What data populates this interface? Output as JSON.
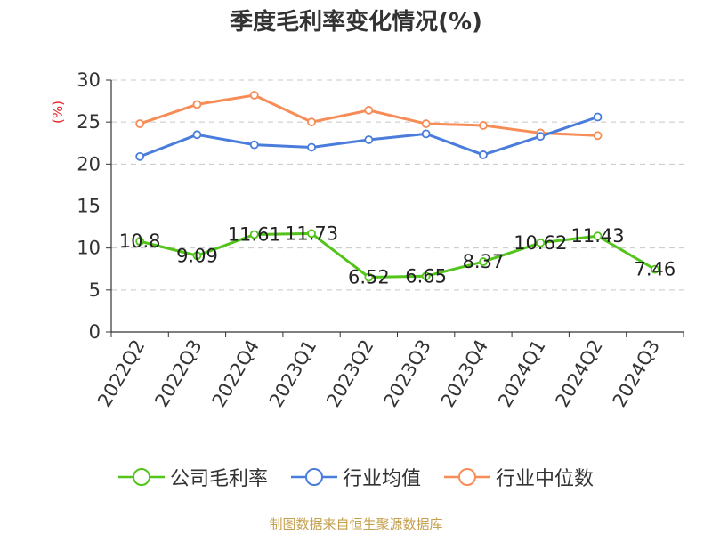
{
  "title": "季度毛利率变化情况(%)",
  "source_note": "制图数据来自恒生聚源数据库",
  "chart_data": {
    "type": "line",
    "title": "季度毛利率变化情况(%)",
    "ylabel": "(%)",
    "xlabel": "",
    "ylim": [
      0,
      30
    ],
    "yticks": [
      0,
      5,
      10,
      15,
      20,
      25,
      30
    ],
    "grid": true,
    "legend_position": "bottom",
    "categories": [
      "2022Q2",
      "2022Q3",
      "2022Q4",
      "2023Q1",
      "2023Q2",
      "2023Q3",
      "2023Q4",
      "2024Q1",
      "2024Q2",
      "2024Q3"
    ],
    "series": [
      {
        "name": "公司毛利率",
        "color": "#52c41a",
        "values": [
          10.8,
          9.09,
          11.61,
          11.73,
          6.52,
          6.65,
          8.37,
          10.62,
          11.43,
          7.46
        ],
        "labels": [
          "10.8",
          "9.09",
          "11.61",
          "11.73",
          "6.52",
          "6.65",
          "8.37",
          "10.62",
          "11.43",
          "7.46"
        ]
      },
      {
        "name": "行业均值",
        "color": "#4a7ddb",
        "values": [
          20.9,
          23.5,
          22.3,
          22.0,
          22.9,
          23.6,
          21.1,
          23.3,
          25.6,
          null
        ]
      },
      {
        "name": "行业中位数",
        "color": "#f78c57",
        "values": [
          24.8,
          27.1,
          28.2,
          25.0,
          26.4,
          24.8,
          24.6,
          23.7,
          23.4,
          null
        ]
      }
    ]
  }
}
